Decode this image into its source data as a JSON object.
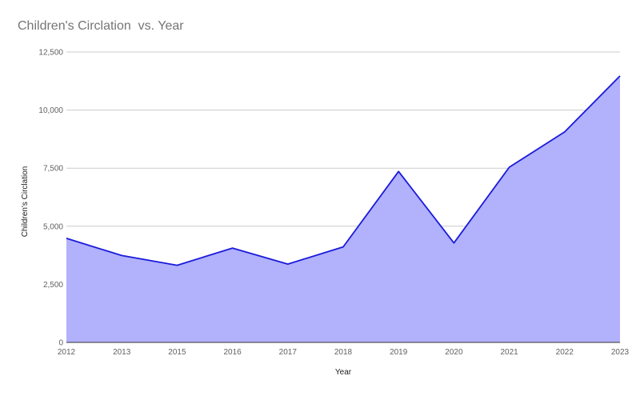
{
  "chart_data": {
    "type": "area",
    "title": "Children's Circlation  vs. Year",
    "xlabel": "Year",
    "ylabel": "Children's Circlation",
    "categories": [
      "2012",
      "2013",
      "2015",
      "2016",
      "2017",
      "2018",
      "2019",
      "2020",
      "2021",
      "2022",
      "2023"
    ],
    "series": [
      {
        "values": [
          4480,
          3740,
          3320,
          4060,
          3370,
          4110,
          7360,
          4280,
          7540,
          9060,
          11470
        ]
      }
    ],
    "ylim": [
      0,
      12500
    ],
    "yticks": [
      0,
      2500,
      5000,
      7500,
      10000,
      12500
    ],
    "ytick_labels": [
      "0",
      "2,500",
      "5,000",
      "7,500",
      "10,000",
      "12,500"
    ],
    "grid": true,
    "legend": "none",
    "colors": {
      "line": "#1a1adb",
      "fill": "#b1b1fc",
      "grid": "#cccccc",
      "axis": "#333333"
    }
  }
}
